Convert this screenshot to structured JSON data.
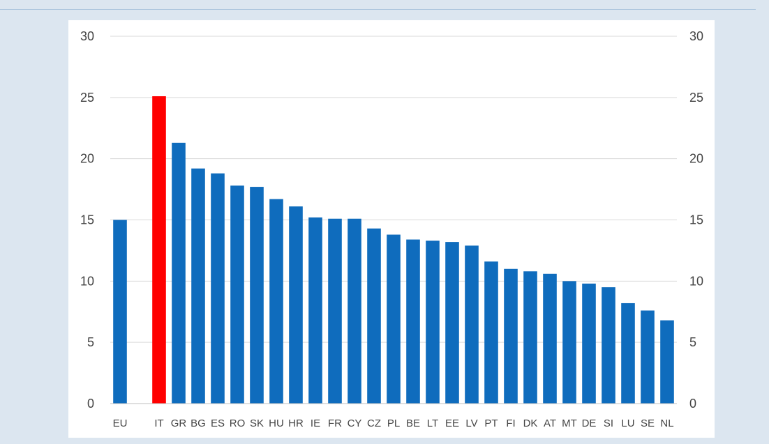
{
  "chart_data": {
    "type": "bar",
    "categories": [
      "EU",
      "",
      "IT",
      "GR",
      "BG",
      "ES",
      "RO",
      "SK",
      "HU",
      "HR",
      "IE",
      "FR",
      "CY",
      "CZ",
      "PL",
      "BE",
      "LT",
      "EE",
      "LV",
      "PT",
      "FI",
      "DK",
      "AT",
      "MT",
      "DE",
      "SI",
      "LU",
      "SE",
      "NL"
    ],
    "values": [
      15.0,
      null,
      25.1,
      21.3,
      19.2,
      18.8,
      17.8,
      17.7,
      16.7,
      16.1,
      15.2,
      15.1,
      15.1,
      14.3,
      13.8,
      13.4,
      13.3,
      13.2,
      12.9,
      11.6,
      11.0,
      10.8,
      10.6,
      10.0,
      9.8,
      9.5,
      8.2,
      7.6,
      6.8
    ],
    "highlight": "IT",
    "colors": {
      "bar": "#0f6cbd",
      "highlight": "#ff0000",
      "grid": "#d9d9d9",
      "axis": "#bfbfbf",
      "text": "#444444",
      "background": "#dce6f0",
      "panel": "#ffffff"
    },
    "ylim": [
      0,
      30
    ],
    "yticks": [
      "0",
      "5",
      "10",
      "15",
      "20",
      "25",
      "30"
    ],
    "yticks_right": [
      "0",
      "5",
      "10",
      "15",
      "20",
      "25",
      "30"
    ],
    "grid": true,
    "title": "",
    "xlabel": "",
    "ylabel": ""
  }
}
